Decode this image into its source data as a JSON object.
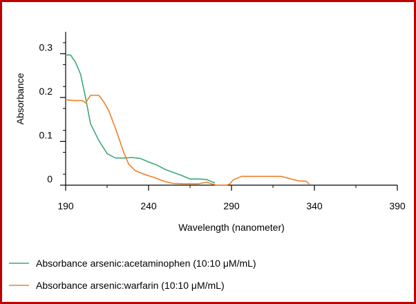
{
  "chart_data": {
    "type": "line",
    "title": "",
    "xlabel": "Wavelength (nanometer)",
    "ylabel": "Absorbance",
    "xlim": [
      190,
      390
    ],
    "ylim": [
      0,
      0.35
    ],
    "x_ticks": [
      190,
      240,
      290,
      340,
      390
    ],
    "x_tick_labels": [
      "190",
      "240",
      "290",
      "340",
      "390"
    ],
    "y_ticks": [
      0,
      0.1,
      0.2,
      0.3
    ],
    "y_tick_labels": [
      "0",
      "0.1",
      "0.2",
      "0.3"
    ],
    "grid": false,
    "legend_position": "bottom-left",
    "series": [
      {
        "name": "Absorbance arsenic:acetaminophen (10:10 μM/mL)",
        "color": "#3aa876",
        "x": [
          190,
          193,
          196,
          199,
          202,
          205,
          210,
          215,
          220,
          225,
          230,
          235,
          240,
          245,
          250,
          260,
          265,
          270,
          275,
          278,
          280
        ],
        "y": [
          0.297,
          0.297,
          0.28,
          0.253,
          0.2,
          0.14,
          0.102,
          0.072,
          0.062,
          0.062,
          0.063,
          0.061,
          0.053,
          0.046,
          0.036,
          0.022,
          0.014,
          0.014,
          0.013,
          0.008,
          0.005
        ]
      },
      {
        "name": "Absorbance arsenic:warfarin (10:10 μM/mL)",
        "color": "#f07f27",
        "x": [
          190,
          195,
          200,
          202,
          205,
          208,
          210,
          213,
          216,
          220,
          225,
          228,
          232,
          238,
          243,
          250,
          255,
          262,
          270,
          275,
          279,
          281,
          283,
          287,
          289,
          291,
          296,
          300,
          310,
          320,
          325,
          330,
          335,
          337
        ],
        "y": [
          0.195,
          0.193,
          0.193,
          0.188,
          0.205,
          0.205,
          0.205,
          0.19,
          0.17,
          0.13,
          0.075,
          0.048,
          0.033,
          0.024,
          0.018,
          0.008,
          0.004,
          0.003,
          0.003,
          0.007,
          0.002,
          0.0,
          0.0,
          0.0,
          0.003,
          0.012,
          0.02,
          0.02,
          0.02,
          0.02,
          0.015,
          0.01,
          0.009,
          0.002
        ]
      }
    ]
  }
}
